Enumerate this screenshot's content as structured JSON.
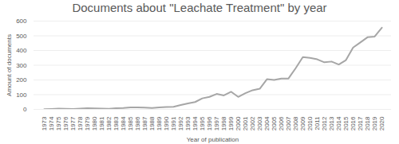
{
  "chart_data": {
    "type": "line",
    "title": "Documents about \"Leachate Treatment\" by year",
    "x_label": "Year of publication",
    "y_label": "Amount of documents",
    "categories": [
      "1973",
      "1974",
      "1975",
      "1976",
      "1977",
      "1978",
      "1979",
      "1980",
      "1981",
      "1982",
      "1983",
      "1984",
      "1985",
      "1986",
      "1987",
      "1988",
      "1989",
      "1990",
      "1991",
      "1992",
      "1993",
      "1994",
      "1995",
      "1996",
      "1997",
      "1998",
      "1999",
      "2000",
      "2001",
      "2002",
      "2003",
      "2004",
      "2005",
      "2006",
      "2007",
      "2008",
      "2009",
      "2010",
      "2011",
      "2012",
      "2013",
      "2014",
      "2015",
      "2016",
      "2017",
      "2018",
      "2019",
      "2020"
    ],
    "values": [
      2,
      3,
      5,
      4,
      3,
      5,
      8,
      7,
      5,
      4,
      8,
      10,
      14,
      13,
      12,
      9,
      14,
      16,
      18,
      30,
      40,
      50,
      75,
      85,
      105,
      95,
      120,
      85,
      110,
      130,
      140,
      205,
      200,
      210,
      210,
      280,
      355,
      350,
      340,
      320,
      325,
      305,
      335,
      420,
      455,
      490,
      495,
      555
    ],
    "color": "#a6a6a6",
    "ylim": [
      0,
      600
    ],
    "yticks": [
      0,
      100,
      200,
      300,
      400,
      500,
      600
    ],
    "grid": true
  }
}
